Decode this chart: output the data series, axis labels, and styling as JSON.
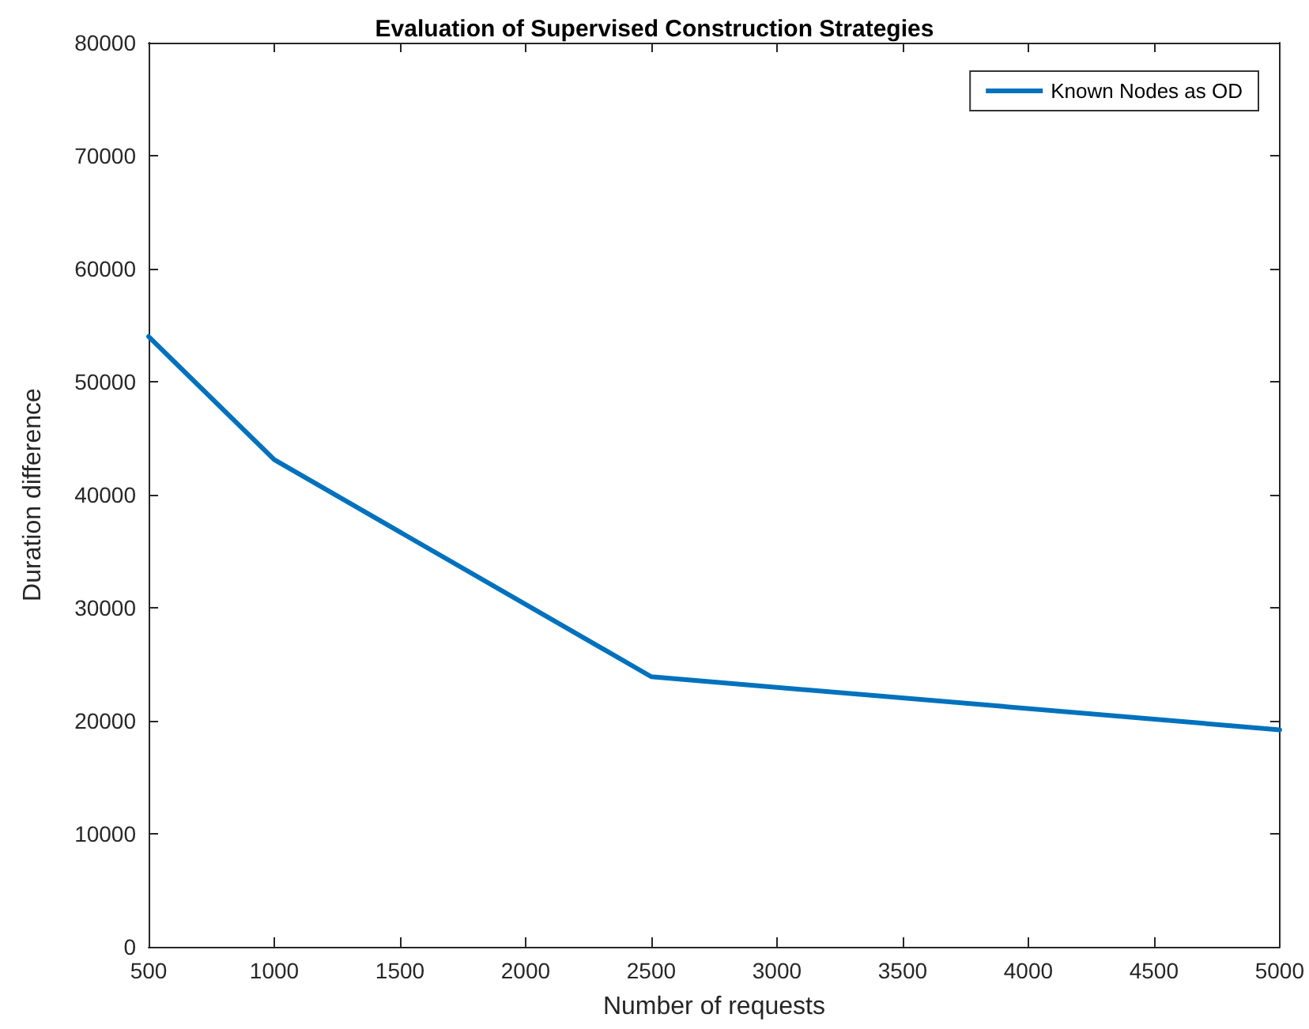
{
  "chart_data": {
    "type": "line",
    "title": "Evaluation of Supervised Construction Strategies",
    "xlabel": "Number of requests",
    "ylabel": "Duration difference",
    "x": [
      500,
      1000,
      2500,
      5000
    ],
    "series": [
      {
        "name": "Known Nodes as OD",
        "color": "#0072bd",
        "values": [
          54000,
          43100,
          23900,
          19200
        ]
      }
    ],
    "xlim": [
      500,
      5000
    ],
    "xticks": [
      500,
      1000,
      1500,
      2000,
      2500,
      3000,
      3500,
      4000,
      4500,
      5000
    ],
    "ylim": [
      0,
      80000
    ],
    "yticks": [
      0,
      10000,
      20000,
      30000,
      40000,
      50000,
      60000,
      70000,
      80000
    ],
    "grid": false,
    "legend": "top right",
    "marker": "none",
    "line_style": "solid"
  }
}
